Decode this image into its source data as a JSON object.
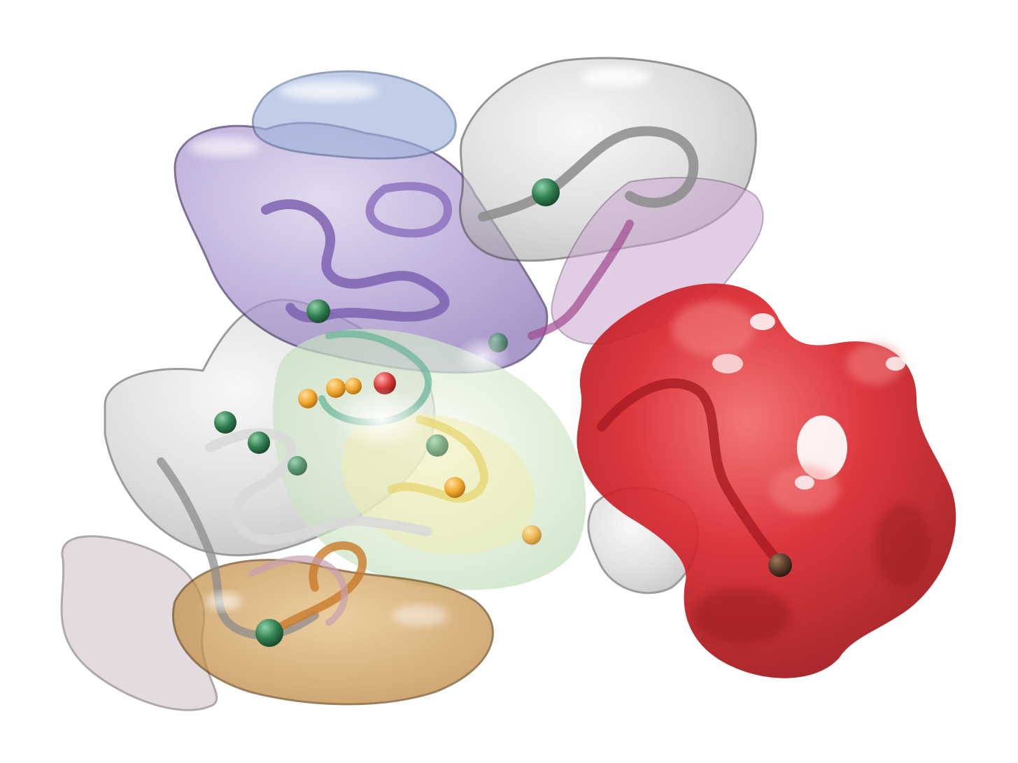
{
  "image": {
    "subject": "molecular-surface-render",
    "background_color": "#ffffff"
  },
  "domains": [
    {
      "name": "purple-domain",
      "color": "#9b86c4"
    },
    {
      "name": "blue-lobe",
      "color": "#9fb4dc"
    },
    {
      "name": "gray-domain",
      "color": "#b8b8b8"
    },
    {
      "name": "light-green-domain",
      "color": "#cfe8c8"
    },
    {
      "name": "yellow-domain",
      "color": "#f0ecb0"
    },
    {
      "name": "orange-domain",
      "color": "#c58a3c"
    },
    {
      "name": "pink-gray-lobe",
      "color": "#cdbfc6"
    },
    {
      "name": "red-domain",
      "color": "#d9262c"
    }
  ],
  "atom_colors": {
    "green": "#2f7d4f",
    "orange": "#f0a830",
    "red": "#d83a3a",
    "dark": "#5a3a2a"
  }
}
